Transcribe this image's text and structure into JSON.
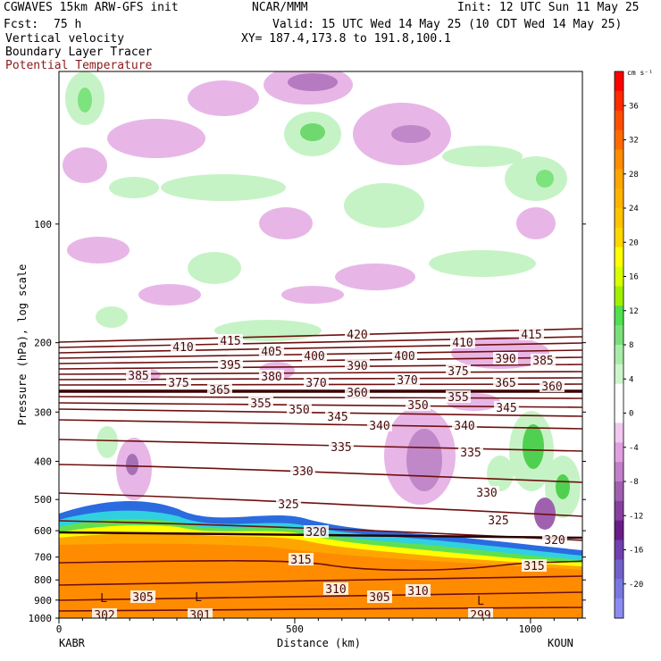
{
  "header": {
    "model": "CGWAVES 15km ARW-GFS init",
    "center": "NCAR/MMM",
    "init": "Init: 12 UTC Sun 11 May 25",
    "fcst_label": "Fcst:",
    "fcst_value": "75 h",
    "valid": "Valid: 15 UTC Wed 14 May 25 (10 CDT Wed 14 May 25)",
    "field1": "Vertical velocity",
    "field2": "Boundary Layer Tracer",
    "field3": "Potential Temperature",
    "xy": "XY= 187.4,173.8 to 191.8,100.1"
  },
  "chart_data": {
    "type": "cross-section",
    "xlabel": "Distance (km)",
    "ylabel": "Pressure (hPa), log scale",
    "x_ticks": [
      0,
      500,
      1000
    ],
    "x_range": [
      0,
      1110
    ],
    "x_end_labels": [
      "KABR",
      "KOUN"
    ],
    "y_ticks": [
      100,
      200,
      300,
      400,
      500,
      600,
      700,
      800,
      900,
      1000
    ],
    "y_scale": "log",
    "colorbar": {
      "unit": "cm s⁻¹",
      "ticks": [
        36,
        32,
        28,
        24,
        20,
        16,
        12,
        8,
        4,
        0,
        -4,
        -8,
        -12,
        -16,
        -20
      ],
      "colors": [
        "#ff0000",
        "#ff2a00",
        "#ff4d00",
        "#ff6a00",
        "#ff8c00",
        "#ffa500",
        "#ffb300",
        "#ffc300",
        "#ffd700",
        "#ffff00",
        "#d8ff00",
        "#a0f000",
        "#50e050",
        "#7ae07a",
        "#a8eca8",
        "#ccf5cc",
        "#ffffff",
        "#ffffff",
        "#f0c8f0",
        "#e0a0e0",
        "#c080c8",
        "#a060b0",
        "#8840a0",
        "#6a1c88",
        "#7040b0",
        "#7060c8",
        "#7878e0",
        "#8c8cf0"
      ]
    },
    "theta_labels": [
      {
        "text": "420",
        "x": 400,
        "y": 374
      },
      {
        "text": "415",
        "x": 258,
        "y": 381
      },
      {
        "text": "415",
        "x": 595,
        "y": 374
      },
      {
        "text": "410",
        "x": 205,
        "y": 388
      },
      {
        "text": "410",
        "x": 518,
        "y": 383
      },
      {
        "text": "405",
        "x": 304,
        "y": 393
      },
      {
        "text": "400",
        "x": 352,
        "y": 398
      },
      {
        "text": "400",
        "x": 453,
        "y": 398
      },
      {
        "text": "395",
        "x": 258,
        "y": 408
      },
      {
        "text": "390",
        "x": 400,
        "y": 409
      },
      {
        "text": "390",
        "x": 566,
        "y": 401
      },
      {
        "text": "385",
        "x": 608,
        "y": 403
      },
      {
        "text": "385",
        "x": 155,
        "y": 420
      },
      {
        "text": "380",
        "x": 304,
        "y": 421
      },
      {
        "text": "375",
        "x": 200,
        "y": 428
      },
      {
        "text": "375",
        "x": 513,
        "y": 415
      },
      {
        "text": "370",
        "x": 354,
        "y": 428
      },
      {
        "text": "370",
        "x": 456,
        "y": 425
      },
      {
        "text": "365",
        "x": 566,
        "y": 428
      },
      {
        "text": "360",
        "x": 618,
        "y": 432
      },
      {
        "text": "365",
        "x": 246,
        "y": 436
      },
      {
        "text": "360",
        "x": 400,
        "y": 439
      },
      {
        "text": "355",
        "x": 513,
        "y": 444
      },
      {
        "text": "355",
        "x": 292,
        "y": 451
      },
      {
        "text": "350",
        "x": 335,
        "y": 458
      },
      {
        "text": "350",
        "x": 468,
        "y": 453
      },
      {
        "text": "345",
        "x": 378,
        "y": 466
      },
      {
        "text": "345",
        "x": 567,
        "y": 456
      },
      {
        "text": "340",
        "x": 425,
        "y": 476
      },
      {
        "text": "340",
        "x": 520,
        "y": 476
      },
      {
        "text": "335",
        "x": 382,
        "y": 500
      },
      {
        "text": "335",
        "x": 527,
        "y": 506
      },
      {
        "text": "330",
        "x": 339,
        "y": 527
      },
      {
        "text": "330",
        "x": 545,
        "y": 551
      },
      {
        "text": "325",
        "x": 323,
        "y": 564
      },
      {
        "text": "325",
        "x": 558,
        "y": 582
      },
      {
        "text": "320",
        "x": 354,
        "y": 595
      },
      {
        "text": "320",
        "x": 621,
        "y": 604
      },
      {
        "text": "315",
        "x": 337,
        "y": 626
      },
      {
        "text": "315",
        "x": 598,
        "y": 633
      },
      {
        "text": "310",
        "x": 376,
        "y": 659
      },
      {
        "text": "310",
        "x": 468,
        "y": 661
      },
      {
        "text": "305",
        "x": 160,
        "y": 668
      },
      {
        "text": "305",
        "x": 425,
        "y": 668
      },
      {
        "text": "302",
        "x": 117,
        "y": 688
      },
      {
        "text": "301",
        "x": 224,
        "y": 688
      },
      {
        "text": "299",
        "x": 538,
        "y": 688
      }
    ],
    "low_markers": [
      {
        "text": "L",
        "x": 116,
        "y": 669
      },
      {
        "text": "L",
        "x": 222,
        "y": 668
      },
      {
        "text": "L",
        "x": 538,
        "y": 672
      }
    ]
  }
}
